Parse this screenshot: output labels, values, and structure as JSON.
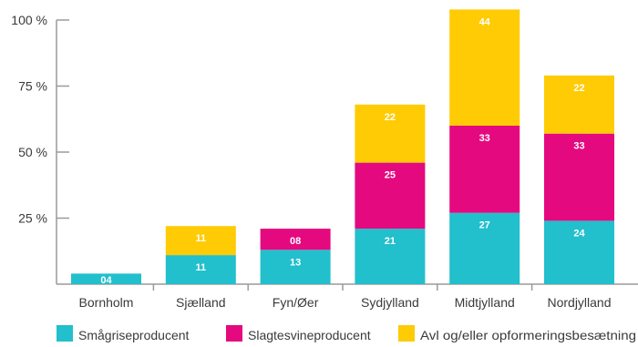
{
  "chart_data": {
    "type": "bar",
    "stacked": true,
    "categories": [
      "Bornholm",
      "Sjælland",
      "Fyn/Øer",
      "Sydjylland",
      "Midtjylland",
      "Nordjylland"
    ],
    "series": [
      {
        "name": "Smågriseproducent",
        "color": "#22bfcc",
        "values": [
          4,
          11,
          13,
          21,
          27,
          24
        ],
        "labels": [
          "04",
          "11",
          "13",
          "21",
          "27",
          "24"
        ]
      },
      {
        "name": "Slagtesvineproducent",
        "color": "#e5097f",
        "values": [
          0,
          0,
          8,
          25,
          33,
          33
        ],
        "labels": [
          "",
          "",
          "08",
          "25",
          "33",
          "33"
        ]
      },
      {
        "name": "Avl og/eller opformeringsbesætning",
        "color": "#fecb05",
        "values": [
          0,
          11,
          0,
          22,
          44,
          22
        ],
        "labels": [
          "",
          "11",
          "",
          "22",
          "44",
          "22"
        ]
      }
    ],
    "yticks": [
      25,
      50,
      75,
      100
    ],
    "ytick_labels": [
      "25 %",
      "50 %",
      "75 %",
      "100 %"
    ],
    "ylim": [
      0,
      105
    ],
    "legend_position": "bottom",
    "grid": false
  }
}
